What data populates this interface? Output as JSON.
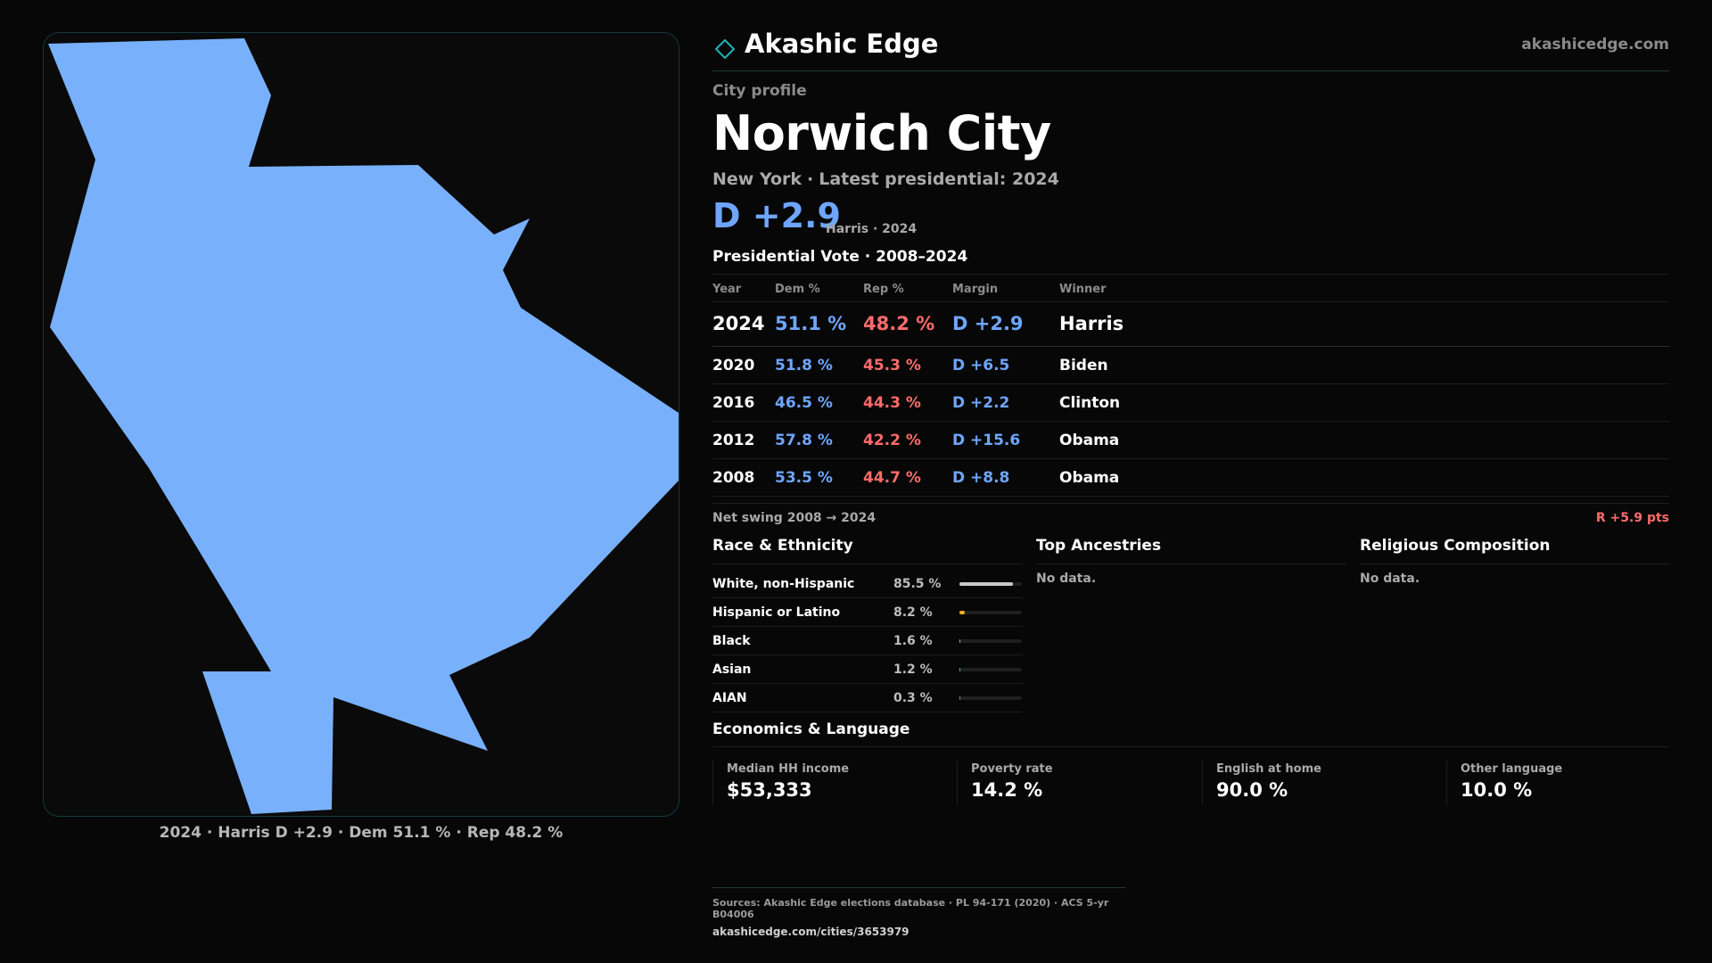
{
  "brand": {
    "name": "Akashic Edge",
    "site": "akashicedge.com"
  },
  "profile": {
    "kicker": "City profile",
    "city": "Norwich City",
    "state": "New York",
    "latest_label": "Latest presidential: 2024",
    "margin_big": "D +2.9",
    "margin_note": "Harris · 2024"
  },
  "map": {
    "caption": "2024 · Harris D +2.9 · Dem 51.1 % · Rep 48.2 %",
    "fill_color": "#78b0fb"
  },
  "vote": {
    "title": "Presidential Vote · 2008–2024",
    "headers": {
      "year": "Year",
      "dem": "Dem %",
      "rep": "Rep %",
      "margin": "Margin",
      "winner": "Winner"
    },
    "rows": [
      {
        "year": "2024",
        "dem": "51.1 %",
        "rep": "48.2 %",
        "margin": "D +2.9",
        "winner": "Harris"
      },
      {
        "year": "2020",
        "dem": "51.8 %",
        "rep": "45.3 %",
        "margin": "D +6.5",
        "winner": "Biden"
      },
      {
        "year": "2016",
        "dem": "46.5 %",
        "rep": "44.3 %",
        "margin": "D +2.2",
        "winner": "Clinton"
      },
      {
        "year": "2012",
        "dem": "57.8 %",
        "rep": "42.2 %",
        "margin": "D +15.6",
        "winner": "Obama"
      },
      {
        "year": "2008",
        "dem": "53.5 %",
        "rep": "44.7 %",
        "margin": "D +8.8",
        "winner": "Obama"
      }
    ],
    "swing_label": "Net swing 2008 → 2024",
    "swing_value": "R +5.9 pts"
  },
  "race": {
    "title": "Race & Ethnicity",
    "rows": [
      {
        "label": "White, non-Hispanic",
        "pct": "85.5 %",
        "value": 85.5,
        "color": "#c9c9c9"
      },
      {
        "label": "Hispanic or Latino",
        "pct": "8.2 %",
        "value": 8.2,
        "color": "#f2b01e"
      },
      {
        "label": "Black",
        "pct": "1.6 %",
        "value": 1.6,
        "color": "#6ea6ff"
      },
      {
        "label": "Asian",
        "pct": "1.2 %",
        "value": 1.2,
        "color": "#31c48d"
      },
      {
        "label": "AIAN",
        "pct": "0.3 %",
        "value": 0.3,
        "color": "#a06cd5"
      }
    ]
  },
  "ancestries": {
    "title": "Top Ancestries",
    "empty": "No data."
  },
  "religion": {
    "title": "Religious Composition",
    "empty": "No data."
  },
  "economics": {
    "title": "Economics & Language",
    "cards": [
      {
        "label": "Median HH income",
        "value": "$53,333"
      },
      {
        "label": "Poverty rate",
        "value": "14.2 %"
      },
      {
        "label": "English at home",
        "value": "90.0 %"
      },
      {
        "label": "Other language",
        "value": "10.0 %"
      }
    ]
  },
  "sources": {
    "text": "Sources: Akashic Edge elections database · PL 94-171 (2020) · ACS 5-yr B04006",
    "url": "akashicedge.com/cities/3653979"
  },
  "colors": {
    "dem": "#6ea6ff",
    "rep": "#ff6b6b",
    "accent": "#1fb5b5"
  }
}
